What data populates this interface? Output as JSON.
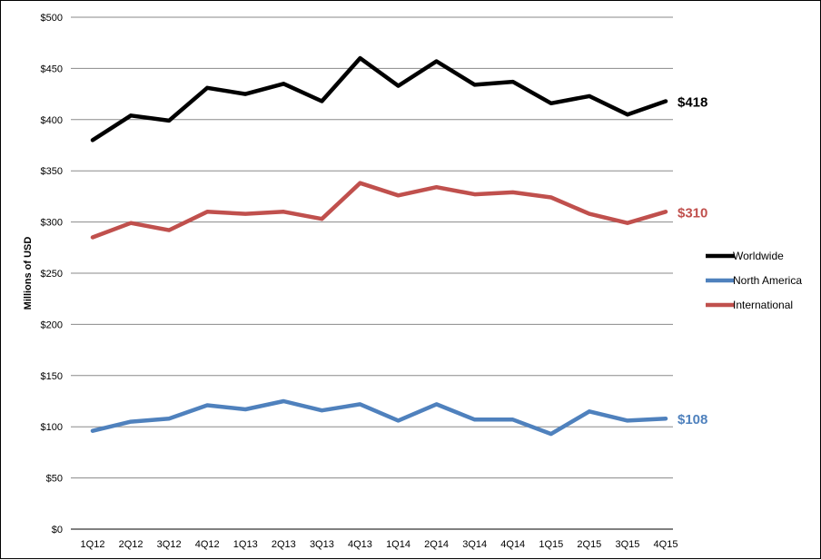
{
  "chart_data": {
    "type": "line",
    "title": "",
    "xlabel": "",
    "ylabel": "Millions of USD",
    "ylim": [
      0,
      500
    ],
    "ytick_step": 50,
    "ytick_prefix": "$",
    "grid": {
      "horizontal": true,
      "vertical": false
    },
    "legend": {
      "position": "right"
    },
    "categories": [
      "1Q12",
      "2Q12",
      "3Q12",
      "4Q12",
      "1Q13",
      "2Q13",
      "3Q13",
      "4Q13",
      "1Q14",
      "2Q14",
      "3Q14",
      "4Q14",
      "1Q15",
      "2Q15",
      "3Q15",
      "4Q15"
    ],
    "series": [
      {
        "name": "Worldwide",
        "color": "#000000",
        "end_label": "$418",
        "values": [
          380,
          404,
          399,
          431,
          425,
          435,
          418,
          460,
          433,
          457,
          434,
          437,
          416,
          423,
          405,
          418
        ]
      },
      {
        "name": "North America",
        "color": "#4f81bd",
        "end_label": "$108",
        "values": [
          96,
          105,
          108,
          121,
          117,
          125,
          116,
          122,
          106,
          122,
          107,
          107,
          93,
          115,
          106,
          108
        ]
      },
      {
        "name": "International",
        "color": "#c0504d",
        "end_label": "$310",
        "values": [
          285,
          299,
          292,
          310,
          308,
          310,
          303,
          338,
          326,
          334,
          327,
          329,
          324,
          308,
          299,
          310
        ]
      }
    ]
  }
}
